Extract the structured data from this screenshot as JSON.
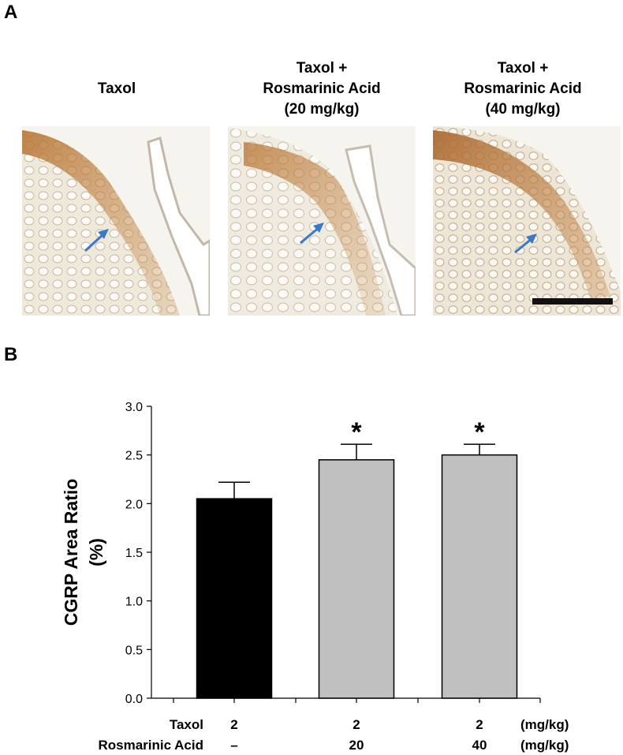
{
  "panel_a_label": "A",
  "panel_b_label": "B",
  "images": [
    {
      "title_lines": [
        "Taxol"
      ],
      "icon": "tissue-micrograph"
    },
    {
      "title_lines": [
        "Taxol +",
        "Rosmarinic Acid",
        "(20 mg/kg)"
      ],
      "icon": "tissue-micrograph"
    },
    {
      "title_lines": [
        "Taxol +",
        "Rosmarinic Acid",
        "(40 mg/kg)"
      ],
      "icon": "tissue-micrograph"
    }
  ],
  "colors": {
    "arrow": "#3a78c8",
    "stain": "#b5702c",
    "bar_taxol": "#000000",
    "bar_ra": "#c0c0c0"
  },
  "chart_data": {
    "type": "bar",
    "title": "",
    "ylabel_lines": [
      "CGRP Area Ratio",
      "(%)"
    ],
    "ylim": [
      0,
      3
    ],
    "yticks": [
      "0.0",
      "0.5",
      "1.0",
      "1.5",
      "2.0",
      "2.5",
      "3.0"
    ],
    "categories": [
      "Taxol 2 / Rosmarinic Acid –",
      "Taxol 2 / Rosmarinic Acid 20",
      "Taxol 2 / Rosmarinic Acid 40"
    ],
    "values": [
      2.05,
      2.45,
      2.5
    ],
    "errors": [
      0.17,
      0.16,
      0.11
    ],
    "significance": [
      "",
      "*",
      "*"
    ],
    "grid": false,
    "dose_table": {
      "rows": [
        {
          "label": "Taxol",
          "values": [
            "2",
            "2",
            "2"
          ],
          "unit": "(mg/kg)"
        },
        {
          "label": "Rosmarinic Acid",
          "values": [
            "–",
            "20",
            "40"
          ],
          "unit": "(mg/kg)"
        }
      ]
    }
  }
}
